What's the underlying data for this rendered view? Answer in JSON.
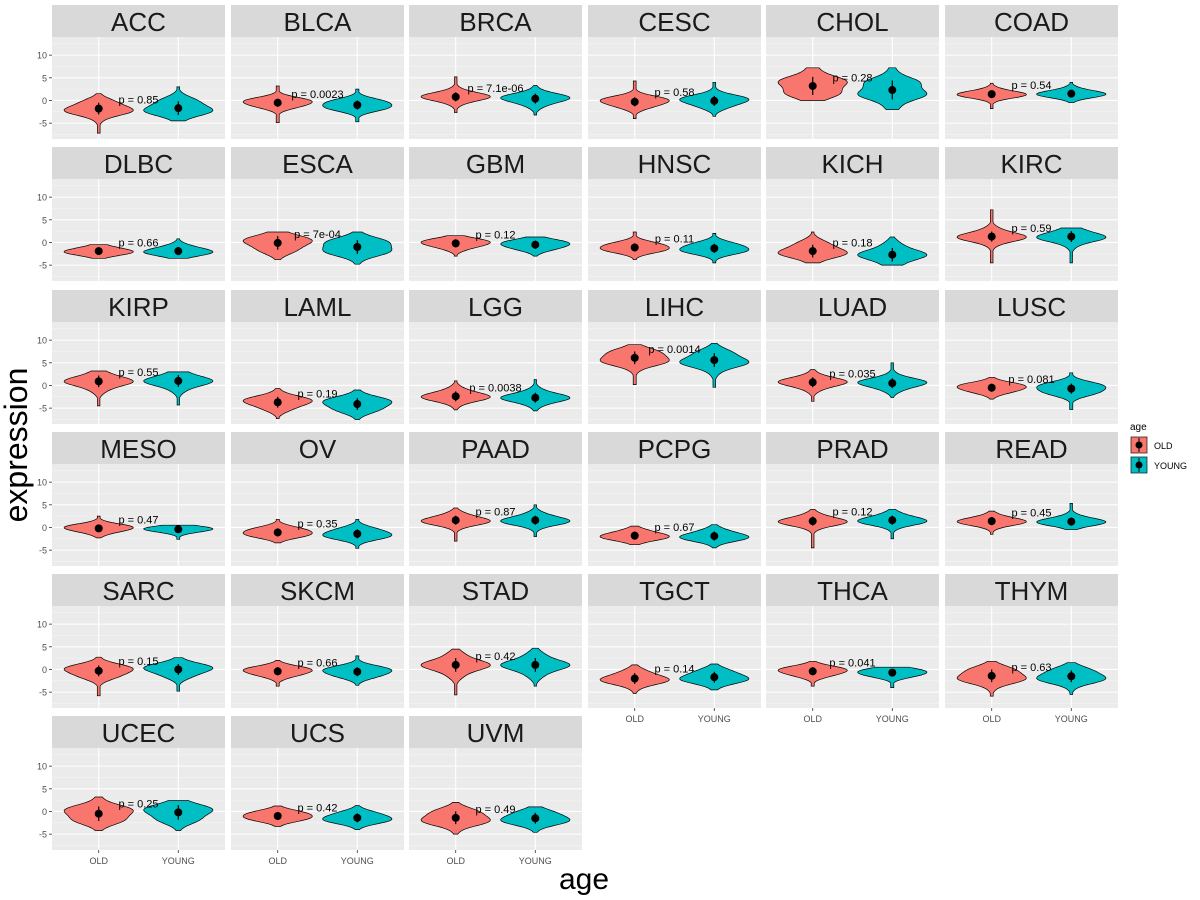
{
  "chart_data": {
    "type": "violin",
    "facet_layout": "6 columns x 7 rows",
    "xlabel": "age",
    "ylabel": "expression",
    "categories": [
      "OLD",
      "YOUNG"
    ],
    "ylim": [
      -8.5,
      14
    ],
    "yticks": [
      -5,
      0,
      5,
      10
    ],
    "legend": {
      "title": "age",
      "position": "right",
      "entries": [
        {
          "label": "OLD",
          "color": "#F8766D"
        },
        {
          "label": "YOUNG",
          "color": "#00BFC4"
        }
      ]
    },
    "panels": [
      {
        "name": "ACC",
        "p": "p = 0.85",
        "old": {
          "mean": -1.8,
          "sd": 1.3,
          "min": -7.2,
          "max": 1.5
        },
        "young": {
          "mean": -1.7,
          "sd": 1.5,
          "min": -4.5,
          "max": 3.0
        }
      },
      {
        "name": "BLCA",
        "p": "p = 0.0023",
        "old": {
          "mean": -0.5,
          "sd": 0.9,
          "min": -4.9,
          "max": 3.2
        },
        "young": {
          "mean": -1.0,
          "sd": 1.0,
          "min": -4.7,
          "max": 2.5
        }
      },
      {
        "name": "BRCA",
        "p": "p = 7.1e-06",
        "old": {
          "mean": 0.8,
          "sd": 1.0,
          "min": -2.7,
          "max": 5.2
        },
        "young": {
          "mean": 0.4,
          "sd": 1.1,
          "min": -3.2,
          "max": 3.3
        }
      },
      {
        "name": "CESC",
        "p": "p = 0.58",
        "old": {
          "mean": -0.3,
          "sd": 1.0,
          "min": -4.0,
          "max": 4.3
        },
        "young": {
          "mean": -0.1,
          "sd": 1.1,
          "min": -3.5,
          "max": 4.0
        }
      },
      {
        "name": "CHOL",
        "p": "p = 0.28",
        "old": {
          "mean": 3.2,
          "sd": 2.0,
          "min": 0.0,
          "max": 7.2
        },
        "young": {
          "mean": 2.3,
          "sd": 2.1,
          "min": -2.0,
          "max": 7.2
        }
      },
      {
        "name": "COAD",
        "p": "p = 0.54",
        "old": {
          "mean": 1.4,
          "sd": 0.8,
          "min": -1.8,
          "max": 3.8
        },
        "young": {
          "mean": 1.5,
          "sd": 0.8,
          "min": -0.5,
          "max": 4.0
        }
      },
      {
        "name": "DLBC",
        "p": "p = 0.66",
        "old": {
          "mean": -1.9,
          "sd": 0.8,
          "min": -3.5,
          "max": -0.5
        },
        "young": {
          "mean": -1.9,
          "sd": 0.9,
          "min": -3.5,
          "max": 0.8
        }
      },
      {
        "name": "ESCA",
        "p": "p = 7e-04",
        "old": {
          "mean": -0.1,
          "sd": 1.5,
          "min": -3.8,
          "max": 2.3
        },
        "young": {
          "mean": -1.0,
          "sd": 1.5,
          "min": -4.8,
          "max": 2.3
        }
      },
      {
        "name": "GBM",
        "p": "p = 0.12",
        "old": {
          "mean": -0.2,
          "sd": 0.9,
          "min": -3.0,
          "max": 1.5
        },
        "young": {
          "mean": -0.5,
          "sd": 0.9,
          "min": -3.0,
          "max": 1.2
        }
      },
      {
        "name": "HNSC",
        "p": "p = 0.11",
        "old": {
          "mean": -1.1,
          "sd": 0.9,
          "min": -3.8,
          "max": 2.3
        },
        "young": {
          "mean": -1.3,
          "sd": 1.0,
          "min": -4.5,
          "max": 2.0
        }
      },
      {
        "name": "KICH",
        "p": "p = 0.18",
        "old": {
          "mean": -1.9,
          "sd": 1.4,
          "min": -4.5,
          "max": 2.3
        },
        "young": {
          "mean": -2.7,
          "sd": 1.5,
          "min": -5.0,
          "max": 1.2
        }
      },
      {
        "name": "KIRC",
        "p": "p = 0.59",
        "old": {
          "mean": 1.3,
          "sd": 1.1,
          "min": -4.5,
          "max": 7.2
        },
        "young": {
          "mean": 1.3,
          "sd": 1.2,
          "min": -4.5,
          "max": 3.2
        }
      },
      {
        "name": "KIRP",
        "p": "p = 0.55",
        "old": {
          "mean": 0.9,
          "sd": 1.3,
          "min": -4.5,
          "max": 3.2
        },
        "young": {
          "mean": 1.0,
          "sd": 1.3,
          "min": -4.3,
          "max": 3.0
        }
      },
      {
        "name": "LAML",
        "p": "p = 0.19",
        "old": {
          "mean": -3.7,
          "sd": 1.2,
          "min": -7.3,
          "max": -0.7
        },
        "young": {
          "mean": -4.1,
          "sd": 1.3,
          "min": -7.5,
          "max": -1.0
        }
      },
      {
        "name": "LGG",
        "p": "p = 0.0038",
        "old": {
          "mean": -2.4,
          "sd": 1.1,
          "min": -5.4,
          "max": 1.0
        },
        "young": {
          "mean": -2.7,
          "sd": 1.1,
          "min": -5.6,
          "max": 1.3
        }
      },
      {
        "name": "LIHC",
        "p": "p = 0.0014",
        "old": {
          "mean": 6.1,
          "sd": 1.4,
          "min": 0.2,
          "max": 9.0
        },
        "young": {
          "mean": 5.6,
          "sd": 1.5,
          "min": -0.4,
          "max": 9.3
        }
      },
      {
        "name": "LUAD",
        "p": "p = 0.035",
        "old": {
          "mean": 0.7,
          "sd": 1.1,
          "min": -3.5,
          "max": 3.5
        },
        "young": {
          "mean": 0.5,
          "sd": 1.1,
          "min": -2.7,
          "max": 5.0
        }
      },
      {
        "name": "LUSC",
        "p": "p = 0.081",
        "old": {
          "mean": -0.5,
          "sd": 0.9,
          "min": -3.0,
          "max": 1.8
        },
        "young": {
          "mean": -0.7,
          "sd": 1.1,
          "min": -5.3,
          "max": 2.8
        }
      },
      {
        "name": "MESO",
        "p": "p = 0.47",
        "old": {
          "mean": -0.2,
          "sd": 0.8,
          "min": -2.3,
          "max": 2.5
        },
        "young": {
          "mean": -0.4,
          "sd": 0.6,
          "min": -2.6,
          "max": 0.5
        }
      },
      {
        "name": "OV",
        "p": "p = 0.35",
        "old": {
          "mean": -1.1,
          "sd": 0.9,
          "min": -3.4,
          "max": 1.8
        },
        "young": {
          "mean": -1.4,
          "sd": 1.0,
          "min": -4.6,
          "max": 1.8
        }
      },
      {
        "name": "PAAD",
        "p": "p = 0.87",
        "old": {
          "mean": 1.6,
          "sd": 1.0,
          "min": -3.0,
          "max": 4.3
        },
        "young": {
          "mean": 1.6,
          "sd": 1.0,
          "min": -2.0,
          "max": 5.0
        }
      },
      {
        "name": "PCPG",
        "p": "p = 0.67",
        "old": {
          "mean": -1.8,
          "sd": 0.9,
          "min": -3.8,
          "max": 0.3
        },
        "young": {
          "mean": -1.9,
          "sd": 1.0,
          "min": -4.5,
          "max": 0.6
        }
      },
      {
        "name": "PRAD",
        "p": "p = 0.12",
        "old": {
          "mean": 1.4,
          "sd": 1.0,
          "min": -4.5,
          "max": 4.0
        },
        "young": {
          "mean": 1.6,
          "sd": 1.0,
          "min": -2.5,
          "max": 4.0
        }
      },
      {
        "name": "READ",
        "p": "p = 0.45",
        "old": {
          "mean": 1.4,
          "sd": 0.9,
          "min": -1.5,
          "max": 3.6
        },
        "young": {
          "mean": 1.3,
          "sd": 0.9,
          "min": -0.5,
          "max": 5.3
        }
      },
      {
        "name": "SARC",
        "p": "p = 0.15",
        "old": {
          "mean": -0.3,
          "sd": 1.2,
          "min": -5.8,
          "max": 2.7
        },
        "young": {
          "mean": 0.0,
          "sd": 1.2,
          "min": -4.8,
          "max": 2.6
        }
      },
      {
        "name": "SKCM",
        "p": "p = 0.66",
        "old": {
          "mean": -0.4,
          "sd": 0.9,
          "min": -3.7,
          "max": 2.0
        },
        "young": {
          "mean": -0.5,
          "sd": 1.0,
          "min": -3.5,
          "max": 3.0
        }
      },
      {
        "name": "STAD",
        "p": "p = 0.42",
        "old": {
          "mean": 1.0,
          "sd": 1.5,
          "min": -5.6,
          "max": 4.5
        },
        "young": {
          "mean": 1.0,
          "sd": 1.5,
          "min": -3.7,
          "max": 4.7
        }
      },
      {
        "name": "TGCT",
        "p": "p = 0.14",
        "old": {
          "mean": -2.0,
          "sd": 1.2,
          "min": -5.3,
          "max": 1.0
        },
        "young": {
          "mean": -1.7,
          "sd": 1.2,
          "min": -4.5,
          "max": 1.2
        }
      },
      {
        "name": "THCA",
        "p": "p = 0.041",
        "old": {
          "mean": -0.4,
          "sd": 0.9,
          "min": -3.7,
          "max": 1.8
        },
        "young": {
          "mean": -0.7,
          "sd": 0.8,
          "min": -4.0,
          "max": 0.5
        }
      },
      {
        "name": "THYM",
        "p": "p = 0.63",
        "old": {
          "mean": -1.4,
          "sd": 1.4,
          "min": -5.9,
          "max": 1.8
        },
        "young": {
          "mean": -1.5,
          "sd": 1.3,
          "min": -5.5,
          "max": 1.5
        }
      },
      {
        "name": "UCEC",
        "p": "p = 0.25",
        "old": {
          "mean": -0.5,
          "sd": 1.6,
          "min": -4.2,
          "max": 3.2
        },
        "young": {
          "mean": -0.2,
          "sd": 1.6,
          "min": -4.2,
          "max": 2.4
        }
      },
      {
        "name": "UCS",
        "p": "p = 0.42",
        "old": {
          "mean": -1.0,
          "sd": 0.9,
          "min": -3.3,
          "max": 1.2
        },
        "young": {
          "mean": -1.4,
          "sd": 1.0,
          "min": -4.0,
          "max": 1.3
        }
      },
      {
        "name": "UVM",
        "p": "p = 0.49",
        "old": {
          "mean": -1.4,
          "sd": 1.4,
          "min": -5.0,
          "max": 2.0
        },
        "young": {
          "mean": -1.5,
          "sd": 1.2,
          "min": -4.6,
          "max": 1.0
        }
      }
    ]
  }
}
